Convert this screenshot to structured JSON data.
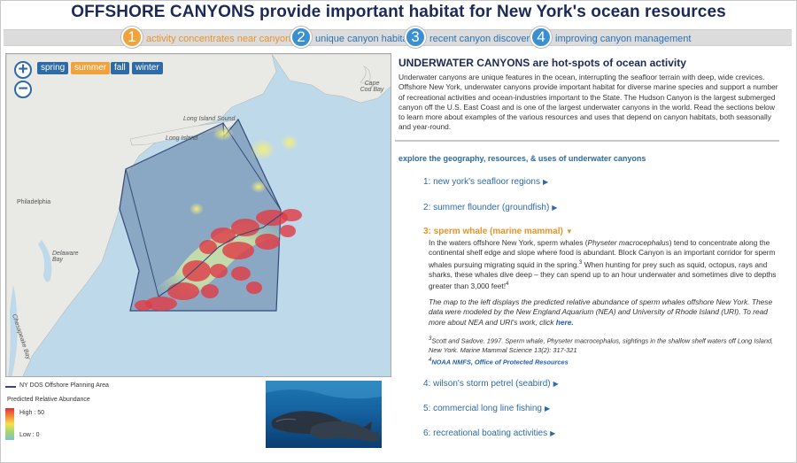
{
  "page_title": "OFFSHORE CANYONS provide important habitat for New York's ocean resources",
  "tabs": [
    {
      "number": "1",
      "label": "activity concentrates near canyons",
      "active": true
    },
    {
      "number": "2",
      "label": "unique canyon habitats",
      "active": false
    },
    {
      "number": "3",
      "label": "recent canyon discoveries",
      "active": false
    },
    {
      "number": "4",
      "label": "improving canyon management",
      "active": false
    }
  ],
  "map": {
    "zoom_in": "+",
    "zoom_out": "−",
    "seasons": [
      {
        "label": "spring",
        "selected": false
      },
      {
        "label": "summer",
        "selected": true
      },
      {
        "label": "fall",
        "selected": false
      },
      {
        "label": "winter",
        "selected": false
      }
    ],
    "place_labels": {
      "long_island_sound": "Long Island Sound",
      "long_island": "Long Island",
      "cape_cod_bay": "Cape Cod Bay",
      "philadelphia": "Philadelphia",
      "delaware_bay": "Delaware Bay",
      "chesapeake_bay": "Chesapeake Bay"
    }
  },
  "legend": {
    "planning_area": "NY DOS Offshore Planning Area",
    "abundance_title": "Predicted Relative Abundance",
    "high": "High : 50",
    "low": "Low : 0"
  },
  "panel": {
    "title": "UNDERWATER CANYONS are hot-spots of ocean activity",
    "intro": "Underwater canyons are unique features in the ocean, interrupting the seafloor terrain with deep, wide crevices. Offshore New York, underwater canyons provide important habitat for diverse marine species and support a number of recreational activities and ocean-industries important to the State. The Hudson Canyon is the largest submerged canyon off the U.S. East Coast and is one of the largest underwater canyons in the world. Read the sections below to learn more about examples of the various resources and uses that depend on canyon habitats, both seasonally and year-round.",
    "explore": "explore the geography, resources, & uses of underwater canyons",
    "items": [
      {
        "label": "1: new york's seafloor regions"
      },
      {
        "label": "2: summer flounder (groundfish)"
      },
      {
        "label": "3: sperm whale (marine mammal)"
      },
      {
        "label": "4: wilson's storm petrel (seabird)"
      },
      {
        "label": "5: commercial long line fishing"
      },
      {
        "label": "6: recreational boating activities"
      }
    ],
    "whale": {
      "p1_a": "In the waters offshore New York, sperm whales (",
      "p1_species": "Physeter macrocephalus",
      "p1_b": ") tend to concentrate along the continental shelf edge and slope where food is abundant. Block Canyon is an important corridor for sperm whales pursuing migrating squid in the spring.",
      "p1_sup1": "3",
      "p1_c": " When hunting for prey such as squid, octopus, rays and sharks, these whales dive deep – they can spend up to an hour underwater and sometimes dive to depths greater than 3,000 feet!",
      "p1_sup2": "4",
      "p2": "The map to the left displays the predicted relative abundance of sperm whales offshore New York. These data were modeled by the New England Aquarium (NEA) and University of Rhode Island (URI). To read more about NEA and URI's work, click ",
      "p2_link": "here.",
      "ref1_num": "3",
      "ref1": "Scott and Sadove. 1997. Sperm whale, Physeter macrocephalus, sightings in the shallow shelf waters off Long Island, New York. Marine Mammal Science 13(2): 317-321",
      "ref2_num": "4",
      "ref2": "NOAA NMFS, Office of Protected Resources"
    }
  },
  "colors": {
    "title": "#1b2a57",
    "active_tab": "#f1a23a",
    "inactive_tab": "#3a8fd0",
    "link": "#2d6aa6",
    "heat_high": "#e2323a"
  }
}
